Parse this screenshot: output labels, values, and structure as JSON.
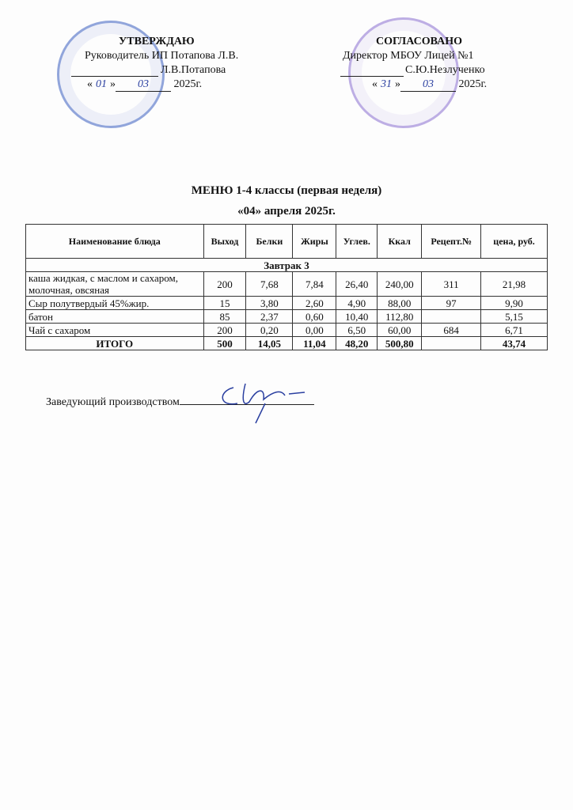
{
  "approve": {
    "title": "УТВЕРЖДАЮ",
    "role": "Руководитель ИП Потапова Л.В.",
    "name": "Л.В.Потапова",
    "date_open": "«",
    "date_day": "01",
    "date_close": "»",
    "date_month": "03",
    "year": "2025г."
  },
  "agree": {
    "title": "СОГЛАСОВАНО",
    "role": "Директор МБОУ Лицей №1",
    "name": "С.Ю.Незлученко",
    "date_open": "«",
    "date_day": "31",
    "date_close": "»",
    "date_month": "03",
    "year": "2025г."
  },
  "menu": {
    "title": "МЕНЮ 1-4 классы  (первая неделя)",
    "date": "«04» апреля 2025г."
  },
  "table": {
    "headers": [
      "Наименование блюда",
      "Выход",
      "Белки",
      "Жиры",
      "Углев.",
      "Ккал",
      "Рецепт.№",
      "цена, руб."
    ],
    "section": "Завтрак 3",
    "rows": [
      [
        "каша жидкая, с маслом и сахаром, молочная, овсяная",
        "200",
        "7,68",
        "7,84",
        "26,40",
        "240,00",
        "311",
        "21,98"
      ],
      [
        "Сыр полутвердый 45%жир.",
        "15",
        "3,80",
        "2,60",
        "4,90",
        "88,00",
        "97",
        "9,90"
      ],
      [
        "батон",
        "85",
        "2,37",
        "0,60",
        "10,40",
        "112,80",
        "",
        "5,15"
      ],
      [
        "Чай с сахаром",
        "200",
        "0,20",
        "0,00",
        "6,50",
        "60,00",
        "684",
        "6,71"
      ]
    ],
    "total": [
      "ИТОГО",
      "500",
      "14,05",
      "11,04",
      "48,20",
      "500,80",
      "",
      "43,74"
    ]
  },
  "footer": {
    "label": "Заведующий производством"
  },
  "colors": {
    "stamp_blue": "#3a5fc0",
    "stamp_violet": "#8a6ed0",
    "ink": "#2a3fa0"
  }
}
